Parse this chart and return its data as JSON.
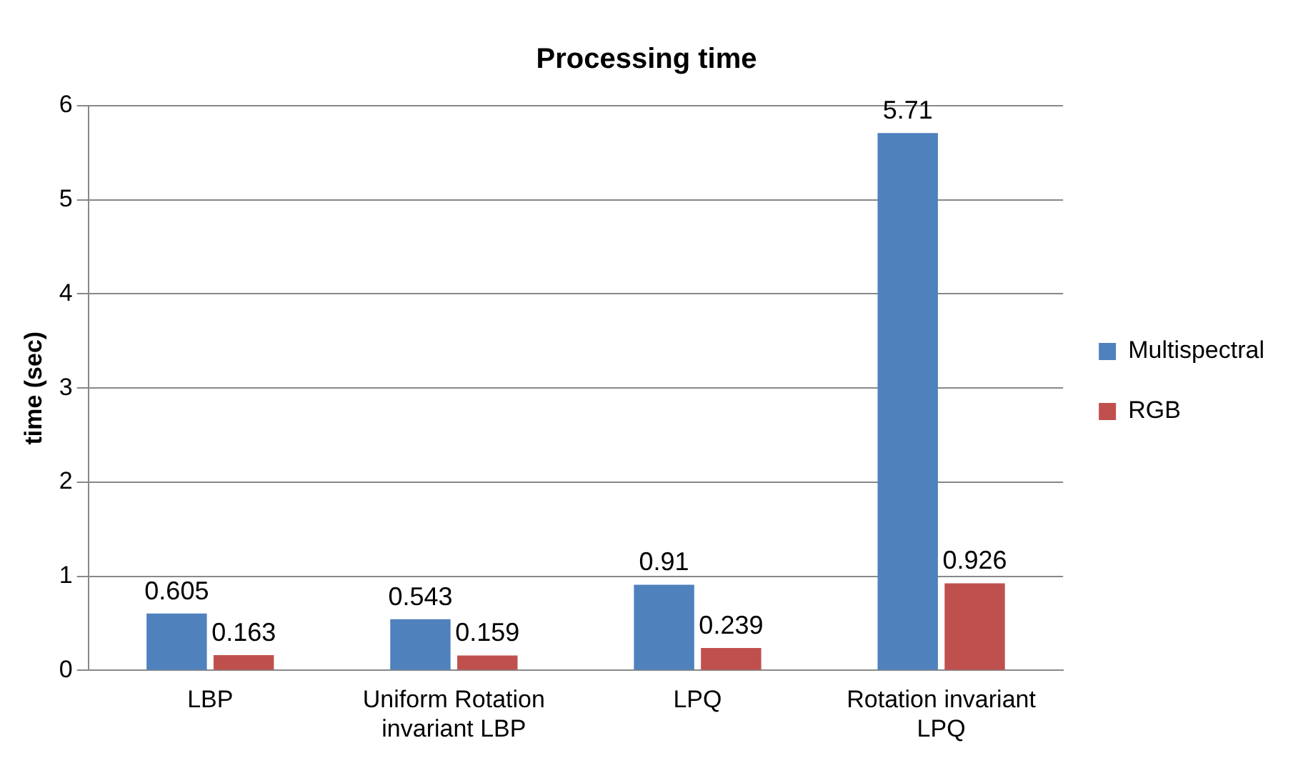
{
  "chart_data": {
    "type": "bar",
    "title": "Processing time",
    "ylabel": "time (sec)",
    "categories": [
      "LBP",
      "Uniform Rotation invariant LBP",
      "LPQ",
      "Rotation invariant LPQ"
    ],
    "series": [
      {
        "name": "Multispectral",
        "color": "#4f81bd",
        "values": [
          0.605,
          0.543,
          0.91,
          5.71
        ]
      },
      {
        "name": "RGB",
        "color": "#c0504d",
        "values": [
          0.163,
          0.159,
          0.239,
          0.926
        ]
      }
    ],
    "ylim": [
      0,
      6
    ],
    "yticks": [
      0,
      1,
      2,
      3,
      4,
      5,
      6
    ],
    "grid": "y",
    "legend": "right",
    "data_labels": true
  }
}
